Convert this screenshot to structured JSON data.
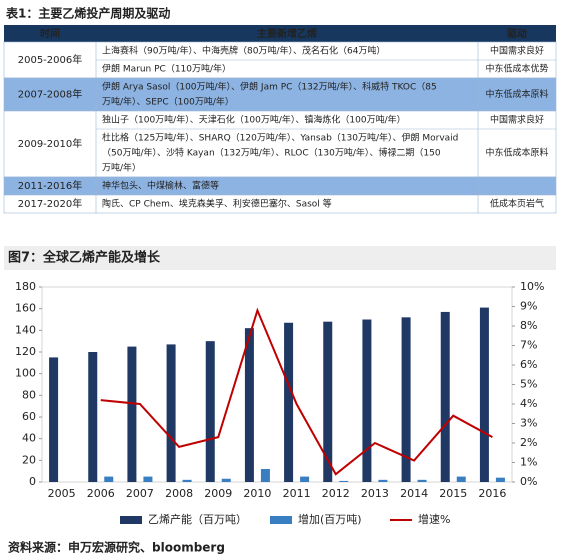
{
  "table": {
    "title": "表1：主要乙烯投产周期及驱动",
    "headers": [
      "时间",
      "主要新增乙烯",
      "驱动"
    ],
    "rows": [
      {
        "time": "2005-2006年",
        "band": false,
        "cells": [
          {
            "lines": [
              "上海赛科（90万吨/年）、中海壳牌（80万吨/年）、茂名石化（64万吨）"
            ],
            "driver": "中国需求良好"
          },
          {
            "lines": [
              "伊朗 Marun PC（110万吨/年）"
            ],
            "driver": "中东低成本优势"
          }
        ]
      },
      {
        "time": "2007-2008年",
        "band": true,
        "cells": [
          {
            "lines": [
              "伊朗 Arya Sasol（100万吨/年）、伊朗 Jam PC（132万吨/年）、科威特 TKOC（85",
              "万吨/年）、SEPC（100万吨/年）"
            ],
            "driver": "中东低成本原料"
          }
        ]
      },
      {
        "time": "2009-2010年",
        "band": false,
        "cells": [
          {
            "lines": [
              "独山子（100万吨/年）、天津石化（100万吨/年）、镇海炼化（100万吨/年）"
            ],
            "driver": "中国需求良好"
          },
          {
            "lines": [
              "杜比格（125万吨/年）、SHARQ（120万吨/年）、Yansab（130万吨/年）、伊朗 Morvaid",
              "（50万吨/年）、沙特 Kayan（132万吨/年）、RLOC（130万吨/年）、博禄二期（150",
              "万吨/年）"
            ],
            "driver": "中东低成本原料"
          }
        ]
      },
      {
        "time": "2011-2016年",
        "band": true,
        "cells": [
          {
            "lines": [
              "神华包头、中煤榆林、富德等"
            ]
          }
        ]
      },
      {
        "time": "2017-2020年",
        "band": false,
        "cells": [
          {
            "lines": [
              "陶氏、CP Chem、埃克森美孚、利安德巴塞尔、Sasol 等"
            ],
            "driver": "低成本页岩气"
          }
        ]
      }
    ]
  },
  "chart_data": {
    "type": "bar",
    "title": "图7：全球乙烯产能及增长",
    "categories": [
      "2005",
      "2006",
      "2007",
      "2008",
      "2009",
      "2010",
      "2011",
      "2012",
      "2013",
      "2014",
      "2015",
      "2016"
    ],
    "series": [
      {
        "name": "乙烯产能（百万吨）",
        "color": "#1f3864",
        "type": "bar",
        "values": [
          115,
          120,
          125,
          127,
          130,
          142,
          147,
          148,
          150,
          152,
          157,
          161
        ]
      },
      {
        "name": "增加(百万吨)",
        "color": "#3a7ec2",
        "type": "bar",
        "values": [
          null,
          5,
          5,
          2,
          3,
          12,
          5,
          1,
          2,
          2,
          5,
          4
        ]
      },
      {
        "name": "增速%",
        "color": "#c00000",
        "type": "line",
        "axis": "y2",
        "values": [
          null,
          4.2,
          4.0,
          1.8,
          2.3,
          8.8,
          4.0,
          0.4,
          2.0,
          1.1,
          3.4,
          2.3
        ]
      }
    ],
    "ylim": [
      0,
      180
    ],
    "yticks": [
      0,
      20,
      40,
      60,
      80,
      100,
      120,
      140,
      160,
      180
    ],
    "y2lim": [
      0,
      10
    ],
    "y2ticks": [
      {
        "value": 0,
        "label": "0%"
      },
      {
        "value": 1,
        "label": "1%"
      },
      {
        "value": 2,
        "label": "2%"
      },
      {
        "value": 3,
        "label": "3%"
      },
      {
        "value": 4,
        "label": "4%"
      },
      {
        "value": 5,
        "label": "5%"
      },
      {
        "value": 6,
        "label": "6%"
      },
      {
        "value": 7,
        "label": "7%"
      },
      {
        "value": 8,
        "label": "8%"
      },
      {
        "value": 9,
        "label": "9%"
      },
      {
        "value": 10,
        "label": "10%"
      }
    ],
    "source": "资料来源：申万宏源研究、bloomberg"
  }
}
